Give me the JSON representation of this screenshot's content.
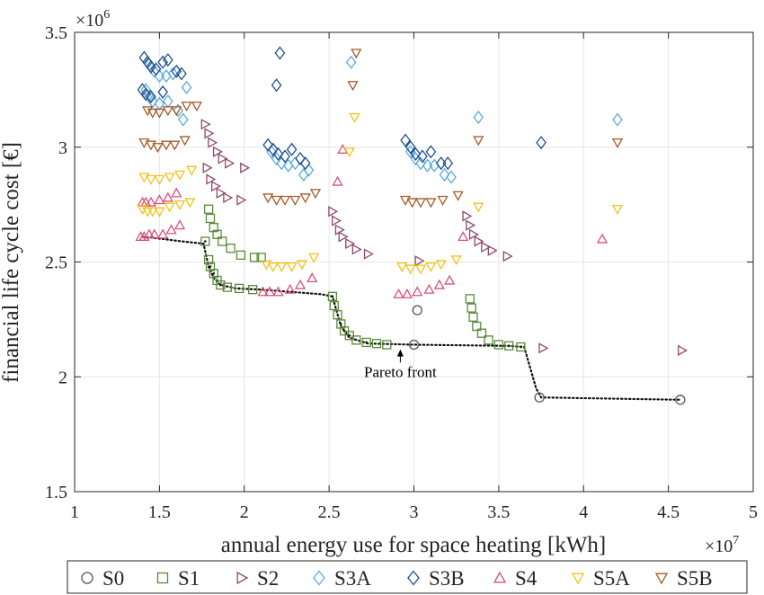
{
  "chart_data": {
    "type": "scatter",
    "xlabel": "annual energy use for space heating [kWh]",
    "ylabel": "financial life cycle cost [€]",
    "x_multiplier": "×10",
    "x_multiplier_exp": "7",
    "y_multiplier": "×10",
    "y_multiplier_exp": "6",
    "xlim": [
      10000000.0,
      50000000.0
    ],
    "ylim": [
      1500000.0,
      3500000.0
    ],
    "x_ticks": [
      {
        "value": 10000000.0,
        "label": "1"
      },
      {
        "value": 15000000.0,
        "label": "1.5"
      },
      {
        "value": 20000000.0,
        "label": "2"
      },
      {
        "value": 25000000.0,
        "label": "2.5"
      },
      {
        "value": 30000000.0,
        "label": "3"
      },
      {
        "value": 35000000.0,
        "label": "3.5"
      },
      {
        "value": 40000000.0,
        "label": "4"
      },
      {
        "value": 45000000.0,
        "label": "4.5"
      },
      {
        "value": 50000000.0,
        "label": "5"
      }
    ],
    "y_ticks": [
      {
        "value": 1500000.0,
        "label": "1.5"
      },
      {
        "value": 2000000.0,
        "label": "2"
      },
      {
        "value": 2500000.0,
        "label": "2.5"
      },
      {
        "value": 3000000.0,
        "label": "3"
      },
      {
        "value": 3500000.0,
        "label": "3.5"
      }
    ],
    "grid": true,
    "legend_position": "bottom",
    "annotation": {
      "text": "Pareto front",
      "x": 29200000.0,
      "y": 2000000.0,
      "arrow_to": [
        29200000.0,
        2120000.0
      ]
    },
    "pareto_front": [
      [
        14000000.0,
        2610000.0
      ],
      [
        15200000.0,
        2600000.0
      ],
      [
        16300000.0,
        2590000.0
      ],
      [
        17600000.0,
        2580000.0
      ],
      [
        17900000.0,
        2480000.0
      ],
      [
        18200000.0,
        2430000.0
      ],
      [
        18600000.0,
        2400000.0
      ],
      [
        19500000.0,
        2385000.0
      ],
      [
        21000000.0,
        2380000.0
      ],
      [
        24500000.0,
        2360000.0
      ],
      [
        25200000.0,
        2350000.0
      ],
      [
        25700000.0,
        2220000.0
      ],
      [
        26200000.0,
        2170000.0
      ],
      [
        27300000.0,
        2145000.0
      ],
      [
        30000000.0,
        2140000.0
      ],
      [
        35500000.0,
        2135000.0
      ],
      [
        36500000.0,
        2130000.0
      ],
      [
        37200000.0,
        1950000.0
      ],
      [
        37500000.0,
        1910000.0
      ],
      [
        45700000.0,
        1900000.0
      ]
    ],
    "series": [
      {
        "name": "S0",
        "marker": "circle",
        "color": "#555555",
        "points": [
          [
            30000000.0,
            2140000.0
          ],
          [
            30200000.0,
            2290000.0
          ],
          [
            37400000.0,
            1910000.0
          ],
          [
            45700000.0,
            1900000.0
          ]
        ]
      },
      {
        "name": "S1",
        "marker": "square",
        "color": "#5a8a3a",
        "points": [
          [
            17700000.0,
            2590000.0
          ],
          [
            17900000.0,
            2730000.0
          ],
          [
            18000000.0,
            2690000.0
          ],
          [
            18200000.0,
            2650000.0
          ],
          [
            18400000.0,
            2620000.0
          ],
          [
            18700000.0,
            2590000.0
          ],
          [
            19200000.0,
            2560000.0
          ],
          [
            19800000.0,
            2530000.0
          ],
          [
            20600000.0,
            2520000.0
          ],
          [
            21000000.0,
            2520000.0
          ],
          [
            17900000.0,
            2510000.0
          ],
          [
            18000000.0,
            2480000.0
          ],
          [
            18200000.0,
            2450000.0
          ],
          [
            18400000.0,
            2420000.0
          ],
          [
            18600000.0,
            2400000.0
          ],
          [
            19000000.0,
            2390000.0
          ],
          [
            19700000.0,
            2385000.0
          ],
          [
            20500000.0,
            2380000.0
          ],
          [
            25200000.0,
            2350000.0
          ],
          [
            25300000.0,
            2310000.0
          ],
          [
            25500000.0,
            2270000.0
          ],
          [
            25700000.0,
            2230000.0
          ],
          [
            25900000.0,
            2200000.0
          ],
          [
            26200000.0,
            2180000.0
          ],
          [
            26600000.0,
            2160000.0
          ],
          [
            27200000.0,
            2150000.0
          ],
          [
            27800000.0,
            2145000.0
          ],
          [
            28400000.0,
            2140000.0
          ],
          [
            33300000.0,
            2340000.0
          ],
          [
            33400000.0,
            2300000.0
          ],
          [
            33500000.0,
            2260000.0
          ],
          [
            33700000.0,
            2220000.0
          ],
          [
            34000000.0,
            2190000.0
          ],
          [
            34400000.0,
            2160000.0
          ],
          [
            35000000.0,
            2140000.0
          ],
          [
            35600000.0,
            2135000.0
          ],
          [
            36300000.0,
            2130000.0
          ]
        ]
      },
      {
        "name": "S2",
        "marker": "triangle-right",
        "color": "#8e4a66",
        "points": [
          [
            17700000.0,
            3100000.0
          ],
          [
            17900000.0,
            3060000.0
          ],
          [
            18100000.0,
            3020000.0
          ],
          [
            18400000.0,
            2980000.0
          ],
          [
            18700000.0,
            2950000.0
          ],
          [
            19100000.0,
            2930000.0
          ],
          [
            20000000.0,
            2910000.0
          ],
          [
            17800000.0,
            2910000.0
          ],
          [
            18000000.0,
            2860000.0
          ],
          [
            18300000.0,
            2830000.0
          ],
          [
            18600000.0,
            2800000.0
          ],
          [
            19000000.0,
            2780000.0
          ],
          [
            19800000.0,
            2770000.0
          ],
          [
            25200000.0,
            2720000.0
          ],
          [
            25400000.0,
            2680000.0
          ],
          [
            25600000.0,
            2640000.0
          ],
          [
            25800000.0,
            2610000.0
          ],
          [
            26200000.0,
            2580000.0
          ],
          [
            26600000.0,
            2555000.0
          ],
          [
            27300000.0,
            2535000.0
          ],
          [
            33100000.0,
            2700000.0
          ],
          [
            33300000.0,
            2660000.0
          ],
          [
            33500000.0,
            2620000.0
          ],
          [
            33800000.0,
            2590000.0
          ],
          [
            34200000.0,
            2565000.0
          ],
          [
            34600000.0,
            2550000.0
          ],
          [
            35500000.0,
            2525000.0
          ],
          [
            30300000.0,
            2505000.0
          ],
          [
            37600000.0,
            2125000.0
          ],
          [
            45800000.0,
            2115000.0
          ]
        ]
      },
      {
        "name": "S3A",
        "marker": "diamond",
        "color": "#5aaadd",
        "points": [
          [
            14200000.0,
            3250000.0
          ],
          [
            14400000.0,
            3220000.0
          ],
          [
            14600000.0,
            3200000.0
          ],
          [
            15000000.0,
            3190000.0
          ],
          [
            15500000.0,
            3200000.0
          ],
          [
            16100000.0,
            3160000.0
          ],
          [
            16400000.0,
            3120000.0
          ],
          [
            16600000.0,
            3260000.0
          ],
          [
            14400000.0,
            3360000.0
          ],
          [
            14700000.0,
            3330000.0
          ],
          [
            15000000.0,
            3310000.0
          ],
          [
            15400000.0,
            3310000.0
          ],
          [
            15800000.0,
            3320000.0
          ],
          [
            21600000.0,
            2980000.0
          ],
          [
            21900000.0,
            2950000.0
          ],
          [
            22200000.0,
            2930000.0
          ],
          [
            22600000.0,
            2920000.0
          ],
          [
            23000000.0,
            2930000.0
          ],
          [
            23500000.0,
            2880000.0
          ],
          [
            23800000.0,
            2900000.0
          ],
          [
            26300000.0,
            3370000.0
          ],
          [
            29800000.0,
            2980000.0
          ],
          [
            30100000.0,
            2950000.0
          ],
          [
            30400000.0,
            2930000.0
          ],
          [
            30800000.0,
            2920000.0
          ],
          [
            31200000.0,
            2920000.0
          ],
          [
            31800000.0,
            2880000.0
          ],
          [
            32200000.0,
            2870000.0
          ],
          [
            33800000.0,
            3130000.0
          ],
          [
            42000000.0,
            3120000.0
          ]
        ]
      },
      {
        "name": "S3B",
        "marker": "diamond",
        "color": "#1f4e8c",
        "points": [
          [
            14100000.0,
            3390000.0
          ],
          [
            14300000.0,
            3370000.0
          ],
          [
            14500000.0,
            3350000.0
          ],
          [
            14800000.0,
            3340000.0
          ],
          [
            15200000.0,
            3370000.0
          ],
          [
            15500000.0,
            3380000.0
          ],
          [
            16000000.0,
            3330000.0
          ],
          [
            16300000.0,
            3320000.0
          ],
          [
            14000000.0,
            3250000.0
          ],
          [
            14200000.0,
            3230000.0
          ],
          [
            14500000.0,
            3220000.0
          ],
          [
            15200000.0,
            3240000.0
          ],
          [
            21400000.0,
            3010000.0
          ],
          [
            21700000.0,
            2990000.0
          ],
          [
            22000000.0,
            2970000.0
          ],
          [
            22400000.0,
            2960000.0
          ],
          [
            22800000.0,
            2990000.0
          ],
          [
            23300000.0,
            2950000.0
          ],
          [
            23600000.0,
            2930000.0
          ],
          [
            22100000.0,
            3410000.0
          ],
          [
            21900000.0,
            3270000.0
          ],
          [
            29500000.0,
            3030000.0
          ],
          [
            29800000.0,
            3000000.0
          ],
          [
            30100000.0,
            2970000.0
          ],
          [
            30500000.0,
            2960000.0
          ],
          [
            31000000.0,
            2980000.0
          ],
          [
            31600000.0,
            2930000.0
          ],
          [
            32000000.0,
            2930000.0
          ],
          [
            37500000.0,
            3020000.0
          ]
        ]
      },
      {
        "name": "S4",
        "marker": "triangle-up",
        "color": "#d9507a",
        "points": [
          [
            13900000.0,
            2610000.0
          ],
          [
            14100000.0,
            2610000.0
          ],
          [
            14400000.0,
            2620000.0
          ],
          [
            14700000.0,
            2620000.0
          ],
          [
            15200000.0,
            2620000.0
          ],
          [
            15700000.0,
            2640000.0
          ],
          [
            16200000.0,
            2660000.0
          ],
          [
            14000000.0,
            2760000.0
          ],
          [
            14200000.0,
            2760000.0
          ],
          [
            14500000.0,
            2760000.0
          ],
          [
            15000000.0,
            2770000.0
          ],
          [
            15500000.0,
            2780000.0
          ],
          [
            16000000.0,
            2800000.0
          ],
          [
            21100000.0,
            2370000.0
          ],
          [
            21500000.0,
            2370000.0
          ],
          [
            22000000.0,
            2370000.0
          ],
          [
            22700000.0,
            2380000.0
          ],
          [
            23300000.0,
            2400000.0
          ],
          [
            24000000.0,
            2430000.0
          ],
          [
            25500000.0,
            2850000.0
          ],
          [
            25800000.0,
            2990000.0
          ],
          [
            29100000.0,
            2360000.0
          ],
          [
            29600000.0,
            2360000.0
          ],
          [
            30200000.0,
            2370000.0
          ],
          [
            30900000.0,
            2380000.0
          ],
          [
            31500000.0,
            2400000.0
          ],
          [
            32100000.0,
            2420000.0
          ],
          [
            32900000.0,
            2610000.0
          ],
          [
            41100000.0,
            2600000.0
          ]
        ]
      },
      {
        "name": "S5A",
        "marker": "triangle-down",
        "color": "#f2c318",
        "points": [
          [
            14000000.0,
            2730000.0
          ],
          [
            14300000.0,
            2720000.0
          ],
          [
            14600000.0,
            2720000.0
          ],
          [
            15000000.0,
            2720000.0
          ],
          [
            15600000.0,
            2740000.0
          ],
          [
            16200000.0,
            2750000.0
          ],
          [
            16800000.0,
            2760000.0
          ],
          [
            14100000.0,
            2870000.0
          ],
          [
            14500000.0,
            2860000.0
          ],
          [
            15000000.0,
            2860000.0
          ],
          [
            15600000.0,
            2870000.0
          ],
          [
            16200000.0,
            2880000.0
          ],
          [
            16900000.0,
            2900000.0
          ],
          [
            21300000.0,
            2490000.0
          ],
          [
            21700000.0,
            2480000.0
          ],
          [
            22200000.0,
            2480000.0
          ],
          [
            22800000.0,
            2480000.0
          ],
          [
            23400000.0,
            2490000.0
          ],
          [
            24100000.0,
            2520000.0
          ],
          [
            26200000.0,
            2980000.0
          ],
          [
            26500000.0,
            3130000.0
          ],
          [
            29300000.0,
            2480000.0
          ],
          [
            29800000.0,
            2470000.0
          ],
          [
            30400000.0,
            2470000.0
          ],
          [
            31000000.0,
            2480000.0
          ],
          [
            31600000.0,
            2490000.0
          ],
          [
            32500000.0,
            2510000.0
          ],
          [
            33800000.0,
            2740000.0
          ],
          [
            42000000.0,
            2730000.0
          ]
        ]
      },
      {
        "name": "S5B",
        "marker": "triangle-down",
        "color": "#a35a2a",
        "points": [
          [
            14300000.0,
            3160000.0
          ],
          [
            14600000.0,
            3150000.0
          ],
          [
            15000000.0,
            3150000.0
          ],
          [
            15500000.0,
            3160000.0
          ],
          [
            16000000.0,
            3160000.0
          ],
          [
            16600000.0,
            3180000.0
          ],
          [
            17200000.0,
            3180000.0
          ],
          [
            14100000.0,
            3020000.0
          ],
          [
            14500000.0,
            3010000.0
          ],
          [
            14900000.0,
            3000000.0
          ],
          [
            15400000.0,
            3010000.0
          ],
          [
            15900000.0,
            3010000.0
          ],
          [
            16500000.0,
            3030000.0
          ],
          [
            21400000.0,
            2780000.0
          ],
          [
            21900000.0,
            2770000.0
          ],
          [
            22400000.0,
            2770000.0
          ],
          [
            23000000.0,
            2770000.0
          ],
          [
            23600000.0,
            2780000.0
          ],
          [
            24200000.0,
            2800000.0
          ],
          [
            26400000.0,
            3270000.0
          ],
          [
            26600000.0,
            3410000.0
          ],
          [
            29500000.0,
            2770000.0
          ],
          [
            29900000.0,
            2760000.0
          ],
          [
            30400000.0,
            2760000.0
          ],
          [
            31000000.0,
            2760000.0
          ],
          [
            31700000.0,
            2770000.0
          ],
          [
            32600000.0,
            2790000.0
          ],
          [
            33800000.0,
            3030000.0
          ],
          [
            42000000.0,
            3020000.0
          ]
        ]
      }
    ]
  }
}
